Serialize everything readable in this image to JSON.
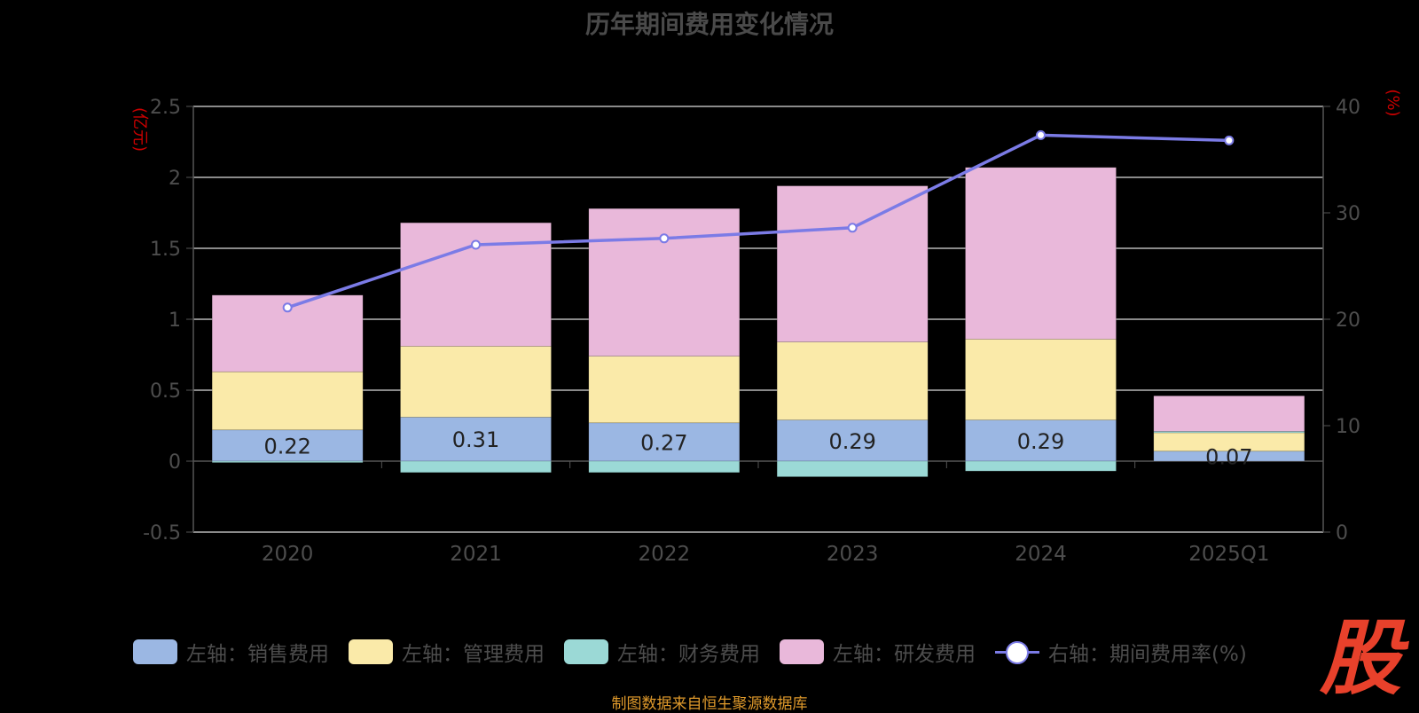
{
  "chart_data": {
    "type": "bar",
    "title": "历年期间费用变化情况",
    "categories": [
      "2020",
      "2021",
      "2022",
      "2023",
      "2024",
      "2025Q1"
    ],
    "y_left_label": "(亿元)",
    "y_right_label": "(%)",
    "y_left_ticks": [
      "2.5",
      "2",
      "1.5",
      "1",
      "0.5",
      "0",
      "-0.5"
    ],
    "y_right_ticks": [
      "40",
      "30",
      "20",
      "10",
      "0"
    ],
    "ylim_left": [
      -0.5,
      2.5
    ],
    "ylim_right": [
      0,
      40
    ],
    "grid": true,
    "series": [
      {
        "name": "左轴：销售费用",
        "stack": true,
        "color": "#9bb7e3",
        "values": [
          0.22,
          0.31,
          0.27,
          0.29,
          0.29,
          0.07
        ]
      },
      {
        "name": "左轴：管理费用",
        "stack": true,
        "color": "#faeaa9",
        "values": [
          0.41,
          0.5,
          0.47,
          0.55,
          0.57,
          0.13
        ]
      },
      {
        "name": "左轴：财务费用",
        "stack": true,
        "color": "#9bd9d6",
        "values": [
          -0.01,
          -0.08,
          -0.08,
          -0.11,
          -0.07,
          0.01
        ]
      },
      {
        "name": "左轴：研发费用",
        "stack": true,
        "color": "#e9b8da",
        "values": [
          0.54,
          0.87,
          1.04,
          1.1,
          1.21,
          0.25
        ]
      },
      {
        "name": "右轴：期间费用率(%)",
        "type": "line",
        "axis": "right",
        "color": "#7b7be6",
        "values": [
          21.1,
          27.0,
          27.6,
          28.6,
          37.3,
          36.8
        ]
      }
    ],
    "data_labels": [
      "0.22",
      "0.31",
      "0.27",
      "0.29",
      "0.29",
      "0.07"
    ],
    "legend_position": "bottom"
  },
  "source_text": "制图数据来自恒生聚源数据库",
  "logo_text": "股"
}
